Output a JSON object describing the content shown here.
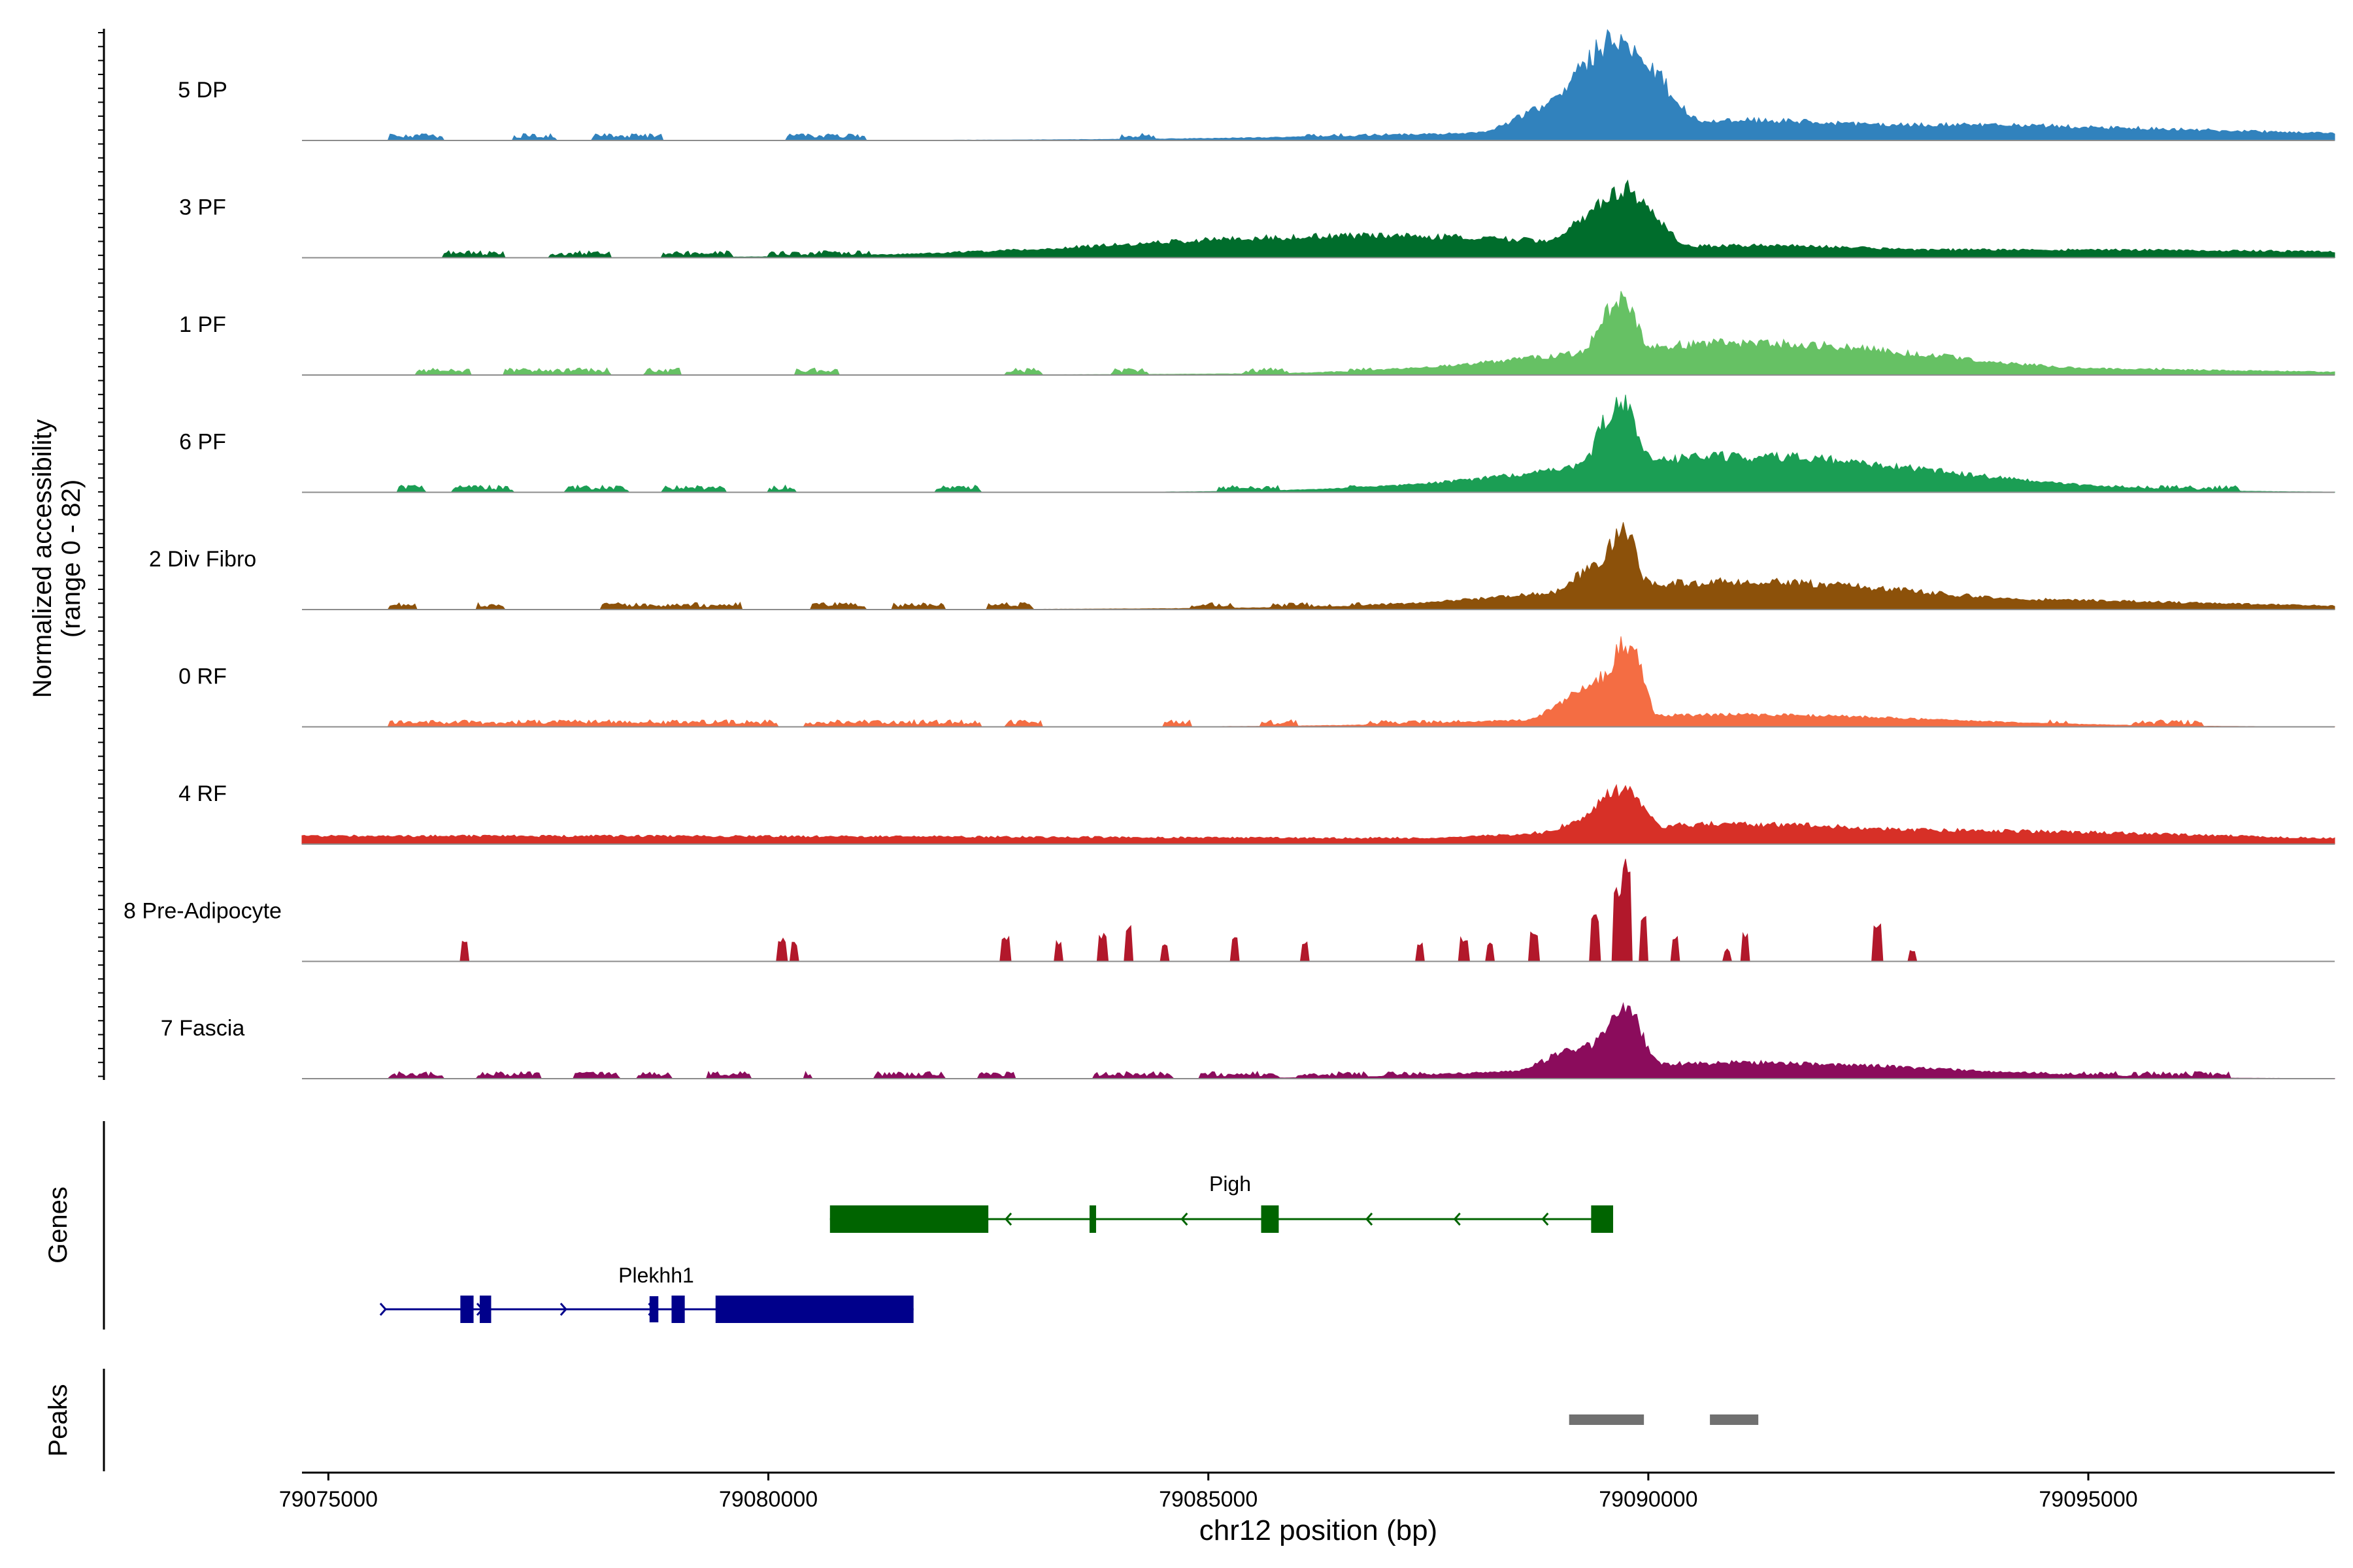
{
  "chart_data": {
    "type": "area",
    "title": "",
    "xlabel": "chr12 position (bp)",
    "ylabel": "Normalized accessibility",
    "ylabel_range": "(range 0 - 82)",
    "xlim": [
      79074700,
      79097800
    ],
    "ylim": [
      0,
      82
    ],
    "x_ticks": [
      79075000,
      79080000,
      79085000,
      79090000,
      79095000
    ],
    "x_tick_labels": [
      "79075000",
      "79080000",
      "79085000",
      "79090000",
      "79095000"
    ],
    "baseline_color": "#8c8c8c",
    "series": [
      {
        "name": "5 DP",
        "color": "#3182bd",
        "noise": [
          [
            79075700,
            79076300
          ],
          [
            79077100,
            79077600
          ],
          [
            79078000,
            79078800
          ],
          [
            79080200,
            79081100
          ],
          [
            79084000,
            79084400
          ],
          [
            79086100,
            79087500
          ],
          [
            79088000,
            79088800
          ],
          [
            79090800,
            79091800
          ],
          [
            79092700,
            79093300
          ],
          [
            79094400,
            79095000
          ]
        ],
        "peaks": [
          [
            79089000,
            79089500,
            18
          ],
          [
            79089300,
            79089500,
            26
          ],
          [
            79089650,
            79089500,
            50
          ],
          [
            79089730,
            79089350,
            44
          ],
          [
            79089530,
            79089300,
            24
          ],
          [
            79091000,
            79091100,
            10
          ],
          [
            79091100,
            79091150,
            8
          ],
          [
            79092800,
            79092850,
            8
          ]
        ]
      },
      {
        "name": "3 PF",
        "color": "#006d2c",
        "noise": [
          [
            79076300,
            79077000
          ],
          [
            79077500,
            79078200
          ],
          [
            79078800,
            79079600
          ],
          [
            79080000,
            79081200
          ],
          [
            79082100,
            79082700
          ],
          [
            79084700,
            79085500
          ],
          [
            79085900,
            79086400
          ],
          [
            79087200,
            79088200
          ],
          [
            79089100,
            79089700
          ],
          [
            79091400,
            79092400
          ],
          [
            79092900,
            79093500
          ]
        ],
        "peaks": [
          [
            79086800,
            79086250,
            11
          ],
          [
            79087000,
            79086250,
            6
          ],
          [
            79089500,
            79089450,
            22
          ],
          [
            79089700,
            79089400,
            32
          ],
          [
            79089780,
            79089150,
            35
          ],
          [
            79091100,
            79091200,
            6
          ],
          [
            79094000,
            79094050,
            4
          ]
        ]
      },
      {
        "name": "1 PF",
        "color": "#66c164",
        "noise": [
          [
            79076000,
            79076600
          ],
          [
            79077000,
            79078200
          ],
          [
            79078600,
            79079000
          ],
          [
            79080300,
            79080800
          ],
          [
            79082700,
            79083100
          ],
          [
            79083900,
            79084300
          ],
          [
            79085400,
            79085900
          ],
          [
            79086600,
            79087400
          ],
          [
            79088100,
            79088700
          ],
          [
            79091000,
            79092400
          ],
          [
            79093600,
            79094000
          ],
          [
            79095600,
            79096100
          ]
        ],
        "peaks": [
          [
            79089300,
            79089300,
            10
          ],
          [
            79089650,
            79089250,
            36
          ],
          [
            79089730,
            79089150,
            38
          ],
          [
            79089850,
            79089150,
            20
          ],
          [
            79090950,
            79091100,
            12
          ],
          [
            79091100,
            79091150,
            16
          ],
          [
            79091200,
            79091100,
            12
          ],
          [
            79092600,
            79092700,
            4
          ]
        ]
      },
      {
        "name": "6 PF",
        "color": "#1b9e54",
        "noise": [
          [
            79075800,
            79076100
          ],
          [
            79076400,
            79077100
          ],
          [
            79077700,
            79078400
          ],
          [
            79078800,
            79079500
          ],
          [
            79080000,
            79080300
          ],
          [
            79081900,
            79082400
          ],
          [
            79085100,
            79085800
          ],
          [
            79086600,
            79087300
          ],
          [
            79087600,
            79088500
          ],
          [
            79091300,
            79091700
          ],
          [
            79092600,
            79093100
          ],
          [
            79093500,
            79096700
          ]
        ],
        "peaks": [
          [
            79089300,
            79089400,
            14
          ],
          [
            79089650,
            79089250,
            42
          ],
          [
            79089730,
            79089150,
            45
          ],
          [
            79089900,
            79089200,
            22
          ],
          [
            79090450,
            79090500,
            6
          ],
          [
            79090950,
            79091150,
            16
          ],
          [
            79091100,
            79091150,
            18
          ],
          [
            79091350,
            79091200,
            10
          ]
        ]
      },
      {
        "name": "2 Div Fibro",
        "color": "#8c510a",
        "noise": [
          [
            79075700,
            79076000
          ],
          [
            79076700,
            79077000
          ],
          [
            79078100,
            79079700
          ],
          [
            79080500,
            79081100
          ],
          [
            79081400,
            79082000
          ],
          [
            79082500,
            79083000
          ],
          [
            79084800,
            79085300
          ],
          [
            79085700,
            79086400
          ],
          [
            79086600,
            79088700
          ],
          [
            79091400,
            79092600
          ],
          [
            79093000,
            79093500
          ],
          [
            79093800,
            79095200
          ],
          [
            79095400,
            79096300
          ]
        ],
        "peaks": [
          [
            79089500,
            79089400,
            22
          ],
          [
            79089650,
            79089200,
            36
          ],
          [
            79089730,
            79089150,
            40
          ],
          [
            79089850,
            79089300,
            16
          ],
          [
            79091050,
            79091150,
            14
          ],
          [
            79092400,
            79092500,
            6
          ]
        ]
      },
      {
        "name": "0 RF",
        "color": "#f46d43",
        "noise": [
          [
            79075700,
            79080100
          ],
          [
            79080400,
            79082400
          ],
          [
            79082700,
            79083100
          ],
          [
            79084500,
            79084800
          ],
          [
            79085600,
            79086000
          ],
          [
            79086800,
            79088500
          ],
          [
            79091000,
            79092000
          ],
          [
            79092500,
            79093600
          ],
          [
            79094500,
            79094800
          ],
          [
            79095500,
            79096300
          ]
        ],
        "peaks": [
          [
            79089300,
            79089350,
            18
          ],
          [
            79089550,
            79089300,
            26
          ],
          [
            79089700,
            79089150,
            40
          ],
          [
            79089800,
            79089150,
            38
          ],
          [
            79091000,
            79091200,
            6
          ],
          [
            79091250,
            79091150,
            5
          ]
        ]
      },
      {
        "name": "4 RF",
        "color": "#d73027",
        "noise": [
          [
            79075700,
            79076600
          ],
          [
            79076800,
            79077600
          ],
          [
            79077900,
            79078400
          ],
          [
            79078600,
            79079100
          ],
          [
            79080300,
            79081100
          ],
          [
            79081400,
            79082200
          ],
          [
            79082600,
            79083300
          ],
          [
            79084600,
            79085200
          ],
          [
            79085900,
            79086300
          ],
          [
            79086700,
            79087600
          ],
          [
            79092000,
            79092200
          ],
          [
            79093100,
            79093500
          ],
          [
            79093800,
            79096700
          ]
        ],
        "peaks": [
          [
            79076800,
            79076900,
            4
          ],
          [
            79089300,
            79089350,
            12
          ],
          [
            79089550,
            79089250,
            24
          ],
          [
            79089730,
            79089250,
            28
          ],
          [
            79089850,
            79089200,
            14
          ],
          [
            79091050,
            79091150,
            10
          ],
          [
            79091250,
            79091150,
            8
          ],
          [
            79092700,
            79092750,
            7
          ]
        ]
      },
      {
        "name": "8 Pre-Adipocyte",
        "color": "#b2182b",
        "noise": [],
        "peaks": [
          [
            79076550,
            79076650,
            10
          ],
          [
            79080150,
            79080180,
            12
          ],
          [
            79080300,
            79080300,
            10
          ],
          [
            79082700,
            79082700,
            12
          ],
          [
            79083300,
            79083350,
            10
          ],
          [
            79083800,
            79083800,
            14
          ],
          [
            79084100,
            79084100,
            18
          ],
          [
            79084500,
            79084700,
            8
          ],
          [
            79085300,
            79085350,
            12
          ],
          [
            79086100,
            79086300,
            10
          ],
          [
            79087400,
            79087450,
            10
          ],
          [
            79087900,
            79087950,
            12
          ],
          [
            79088200,
            79088200,
            10
          ],
          [
            79088700,
            79088750,
            16
          ],
          [
            79089400,
            79089400,
            24
          ],
          [
            79089650,
            79089300,
            40
          ],
          [
            79089750,
            79089150,
            50
          ],
          [
            79089950,
            79089250,
            22
          ],
          [
            79090300,
            79090300,
            12
          ],
          [
            79090900,
            79090950,
            6
          ],
          [
            79091100,
            79091200,
            14
          ],
          [
            79092600,
            79092650,
            20
          ],
          [
            79093000,
            79093000,
            6
          ]
        ]
      },
      {
        "name": "7 Fascia",
        "color": "#8b0c5c",
        "noise": [
          [
            79075700,
            79076300
          ],
          [
            79076700,
            79077400
          ],
          [
            79077800,
            79078300
          ],
          [
            79078500,
            79078900
          ],
          [
            79079300,
            79079800
          ],
          [
            79080400,
            79080500
          ],
          [
            79081200,
            79082000
          ],
          [
            79082400,
            79082800
          ],
          [
            79083700,
            79084600
          ],
          [
            79084900,
            79085800
          ],
          [
            79086000,
            79086800
          ],
          [
            79087000,
            79088100
          ],
          [
            79088500,
            79089000
          ],
          [
            79090700,
            79091400
          ],
          [
            79092400,
            79093300
          ],
          [
            79093600,
            79096600
          ]
        ],
        "peaks": [
          [
            79089300,
            79089450,
            16
          ],
          [
            79089600,
            79089250,
            26
          ],
          [
            79089730,
            79089200,
            36
          ],
          [
            79089900,
            79089200,
            14
          ],
          [
            79090500,
            79090500,
            5
          ],
          [
            79091150,
            79091150,
            8
          ]
        ]
      }
    ],
    "gene_track": {
      "label": "Genes",
      "genes": [
        {
          "name": "Pigh",
          "color": "#006400",
          "row": 0,
          "strand": "-",
          "start": 79080700,
          "end": 79089600,
          "exons": [
            [
              79080700,
              79082500,
              "wide"
            ],
            [
              79083650,
              79083700,
              "wide"
            ],
            [
              79085600,
              79085800,
              "wide"
            ],
            [
              79089350,
              79089600,
              "wide"
            ]
          ],
          "arrows": [
            79082700,
            79084700,
            79086800,
            79087800,
            79088800
          ]
        },
        {
          "name": "Plekhh1",
          "color": "#00008b",
          "row": 1,
          "strand": "+",
          "start": 79075650,
          "end": 79081650,
          "exons": [
            [
              79076500,
              79076650,
              "wide"
            ],
            [
              79076720,
              79076850,
              "wide"
            ],
            [
              79078650,
              79078750,
              "narrow"
            ],
            [
              79078900,
              79079050,
              "wide"
            ],
            [
              79079400,
              79081650,
              "wide"
            ]
          ],
          "arrows": [
            79075650,
            79076750,
            79077700,
            79078700
          ]
        }
      ]
    },
    "peak_track": {
      "label": "Peaks",
      "color": "#707070",
      "regions": [
        [
          79089100,
          79089950
        ],
        [
          79090700,
          79091250
        ]
      ]
    }
  }
}
